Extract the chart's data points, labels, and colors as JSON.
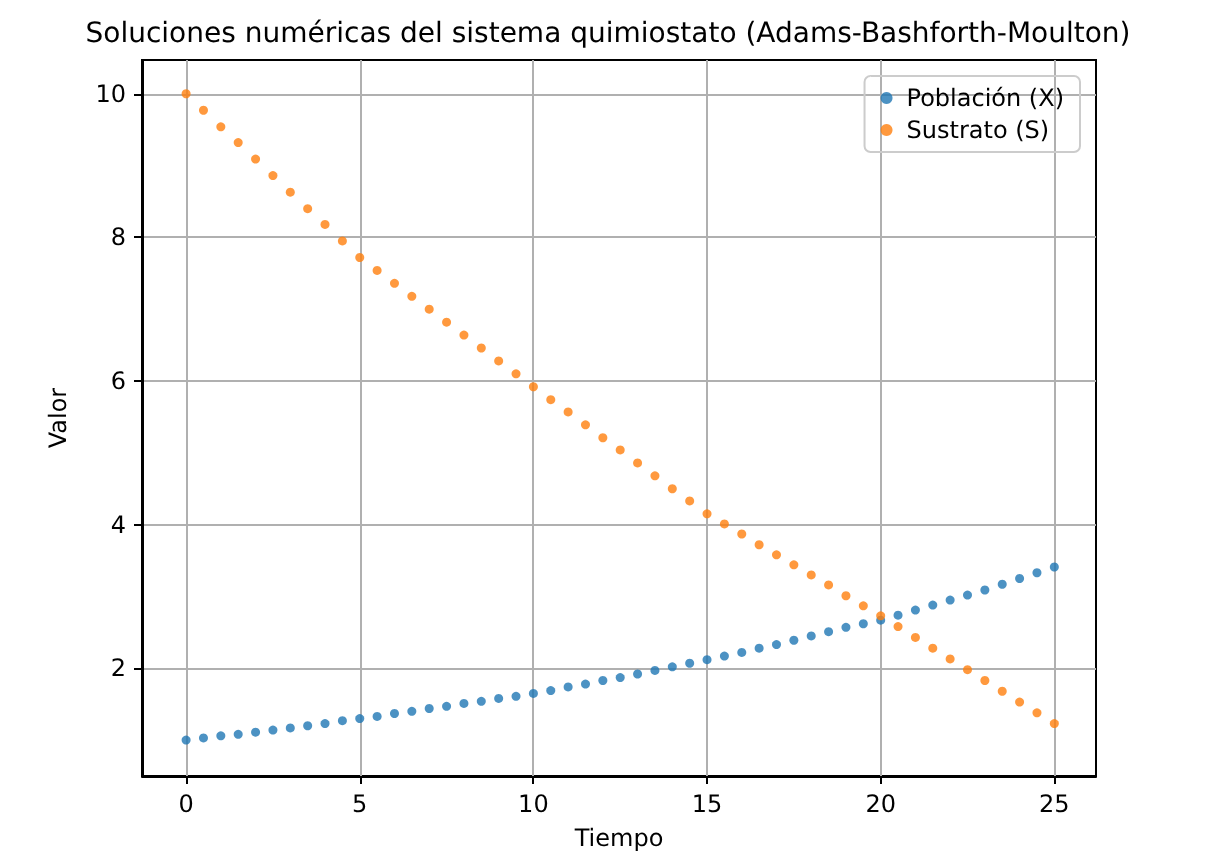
{
  "chart_data": {
    "type": "scatter",
    "title": "Soluciones numéricas del sistema quimiostato (Adams-Bashforth-Moulton)",
    "xlabel": "Tiempo",
    "ylabel": "Valor",
    "x": [
      0,
      0.5,
      1,
      1.5,
      2,
      2.5,
      3,
      3.5,
      4,
      4.5,
      5,
      5.5,
      6,
      6.5,
      7,
      7.5,
      8,
      8.5,
      9,
      9.5,
      10,
      10.5,
      11,
      11.5,
      12,
      12.5,
      13,
      13.5,
      14,
      14.5,
      15,
      15.5,
      16,
      16.5,
      17,
      17.5,
      18,
      18.5,
      19,
      19.5,
      20,
      20.5,
      21,
      21.5,
      22,
      22.5,
      23,
      23.5,
      24,
      24.5,
      25
    ],
    "series": [
      {
        "name": "Población (X)",
        "color": "#1f77b4",
        "values": [
          1.0,
          1.03,
          1.06,
          1.08,
          1.11,
          1.14,
          1.17,
          1.2,
          1.23,
          1.27,
          1.3,
          1.33,
          1.37,
          1.4,
          1.44,
          1.47,
          1.51,
          1.54,
          1.58,
          1.61,
          1.65,
          1.69,
          1.74,
          1.78,
          1.83,
          1.87,
          1.92,
          1.97,
          2.02,
          2.07,
          2.12,
          2.17,
          2.22,
          2.28,
          2.33,
          2.39,
          2.45,
          2.51,
          2.57,
          2.62,
          2.67,
          2.74,
          2.81,
          2.88,
          2.95,
          3.02,
          3.09,
          3.17,
          3.25,
          3.33,
          3.41
        ]
      },
      {
        "name": "Sustrato (S)",
        "color": "#ff7f0e",
        "values": [
          10.0,
          9.77,
          9.54,
          9.32,
          9.09,
          8.86,
          8.63,
          8.4,
          8.18,
          7.95,
          7.72,
          7.54,
          7.36,
          7.18,
          7.0,
          6.82,
          6.64,
          6.46,
          6.28,
          6.1,
          5.92,
          5.74,
          5.57,
          5.39,
          5.21,
          5.04,
          4.86,
          4.68,
          4.5,
          4.33,
          4.15,
          4.01,
          3.87,
          3.72,
          3.58,
          3.44,
          3.3,
          3.16,
          3.01,
          2.87,
          2.73,
          2.58,
          2.43,
          2.28,
          2.13,
          1.98,
          1.83,
          1.68,
          1.53,
          1.38,
          1.23
        ]
      }
    ],
    "xlim": [
      -1.27,
      26.2
    ],
    "xticks": [
      0,
      5,
      10,
      15,
      20,
      25
    ],
    "ylim": [
      0.5,
      10.47
    ],
    "yticks": [
      2,
      4,
      6,
      8,
      10
    ],
    "grid": true,
    "legend": "top right",
    "marker": "circle"
  }
}
